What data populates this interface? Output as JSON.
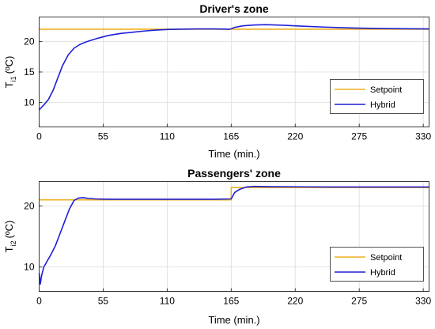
{
  "chart_data": [
    {
      "type": "line",
      "title": "Driver's zone",
      "xlabel": "Time (min.)",
      "ylabel": {
        "base": "T",
        "sub": "i1",
        "unit": "(ºC)"
      },
      "xlim": [
        0,
        335
      ],
      "ylim": [
        6,
        24
      ],
      "xticks": [
        0,
        55,
        110,
        165,
        220,
        275,
        330
      ],
      "yticks": [
        10,
        15,
        20
      ],
      "grid": true,
      "legend_position": "bottom-right",
      "series": [
        {
          "name": "Setpoint",
          "color": "#EDB120",
          "points": [
            [
              0,
              22
            ],
            [
              335,
              22
            ]
          ]
        },
        {
          "name": "Hybrid",
          "color": "#1f1fd6",
          "points": [
            [
              0,
              8.8
            ],
            [
              4,
              9.6
            ],
            [
              8,
              10.5
            ],
            [
              12,
              12.0
            ],
            [
              16,
              14.0
            ],
            [
              20,
              16.0
            ],
            [
              25,
              17.8
            ],
            [
              30,
              18.9
            ],
            [
              35,
              19.5
            ],
            [
              40,
              19.9
            ],
            [
              50,
              20.5
            ],
            [
              60,
              21.0
            ],
            [
              70,
              21.3
            ],
            [
              80,
              21.5
            ],
            [
              90,
              21.7
            ],
            [
              100,
              21.85
            ],
            [
              110,
              21.95
            ],
            [
              120,
              22.0
            ],
            [
              135,
              22.05
            ],
            [
              150,
              22.05
            ],
            [
              164,
              22.0
            ],
            [
              168,
              22.3
            ],
            [
              175,
              22.55
            ],
            [
              185,
              22.7
            ],
            [
              195,
              22.75
            ],
            [
              210,
              22.65
            ],
            [
              225,
              22.5
            ],
            [
              245,
              22.35
            ],
            [
              270,
              22.2
            ],
            [
              300,
              22.1
            ],
            [
              335,
              22.05
            ]
          ]
        }
      ]
    },
    {
      "type": "line",
      "title": "Passengers' zone",
      "xlabel": "Time (min.)",
      "ylabel": {
        "base": "T",
        "sub": "i2",
        "unit": "(ºC)"
      },
      "xlim": [
        0,
        335
      ],
      "ylim": [
        6,
        24
      ],
      "xticks": [
        0,
        55,
        110,
        165,
        220,
        275,
        330
      ],
      "yticks": [
        10,
        20
      ],
      "grid": true,
      "legend_position": "bottom-right",
      "series": [
        {
          "name": "Setpoint",
          "color": "#EDB120",
          "points": [
            [
              0,
              21
            ],
            [
              165,
              21
            ],
            [
              165,
              23
            ],
            [
              335,
              23
            ]
          ]
        },
        {
          "name": "Hybrid",
          "color": "#1f1fd6",
          "points": [
            [
              0,
              9.0
            ],
            [
              1,
              7.2
            ],
            [
              2,
              8.5
            ],
            [
              4,
              10.0
            ],
            [
              7,
              11.0
            ],
            [
              10,
              12.0
            ],
            [
              14,
              13.5
            ],
            [
              18,
              15.5
            ],
            [
              22,
              17.5
            ],
            [
              26,
              19.5
            ],
            [
              30,
              20.9
            ],
            [
              34,
              21.3
            ],
            [
              38,
              21.35
            ],
            [
              42,
              21.25
            ],
            [
              48,
              21.15
            ],
            [
              60,
              21.1
            ],
            [
              100,
              21.1
            ],
            [
              150,
              21.1
            ],
            [
              165,
              21.15
            ],
            [
              168,
              22.2
            ],
            [
              172,
              22.7
            ],
            [
              178,
              23.1
            ],
            [
              185,
              23.2
            ],
            [
              200,
              23.15
            ],
            [
              250,
              23.1
            ],
            [
              300,
              23.1
            ],
            [
              335,
              23.1
            ]
          ]
        }
      ]
    }
  ]
}
